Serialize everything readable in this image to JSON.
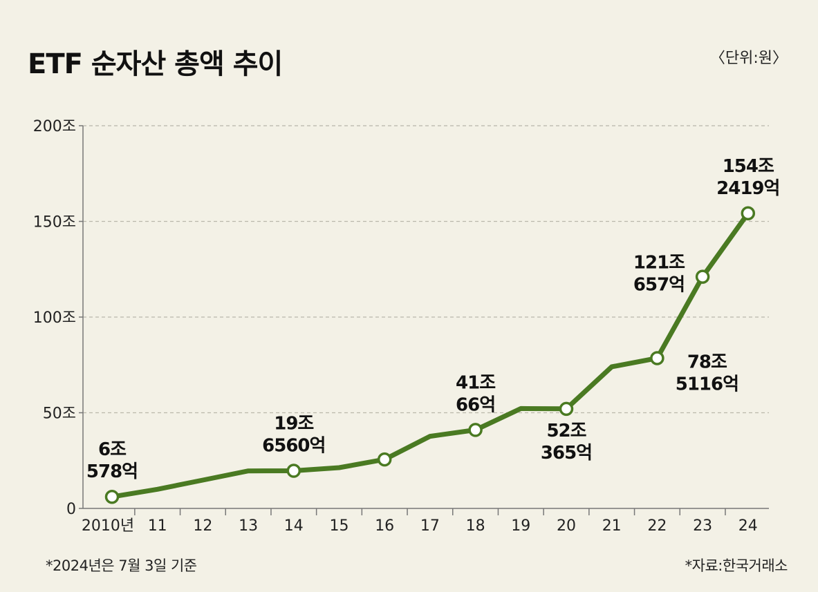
{
  "header": {
    "title": "ETF 순자산 총액 추이",
    "unit": "〈단위:원〉"
  },
  "footer": {
    "note": "*2024년은 7월 3일 기준",
    "source": "*자료:한국거래소"
  },
  "chart_data": {
    "type": "line",
    "x": [
      "2010년",
      "11",
      "12",
      "13",
      "14",
      "15",
      "16",
      "17",
      "18",
      "19",
      "20",
      "21",
      "22",
      "23",
      "24"
    ],
    "values": [
      6.06,
      10.0,
      14.8,
      19.6,
      19.66,
      21.3,
      25.6,
      37.7,
      41.0,
      52.2,
      52.04,
      74.0,
      78.51,
      121.07,
      154.24
    ],
    "ylim": [
      0,
      200
    ],
    "yticks": [
      {
        "value": 0,
        "label": "0"
      },
      {
        "value": 50,
        "label": "50조"
      },
      {
        "value": 100,
        "label": "100조"
      },
      {
        "value": 150,
        "label": "150조"
      },
      {
        "value": 200,
        "label": "200조"
      }
    ],
    "grid": true,
    "line_color": "#4a7a22",
    "marker_fill": "#ffffff",
    "markers": [
      {
        "index": 0,
        "label": [
          "6조",
          "578억"
        ],
        "pos": "above"
      },
      {
        "index": 4,
        "label": [
          "19조",
          "6560억"
        ],
        "pos": "above"
      },
      {
        "index": 6,
        "label": null
      },
      {
        "index": 8,
        "label": [
          "41조",
          "66억"
        ],
        "pos": "above"
      },
      {
        "index": 10,
        "label": [
          "52조",
          "365억"
        ],
        "pos": "below"
      },
      {
        "index": 12,
        "label": [
          "78조",
          "5116억"
        ],
        "pos": "below-right"
      },
      {
        "index": 13,
        "label": [
          "121조",
          "657억"
        ],
        "pos": "left"
      },
      {
        "index": 14,
        "label": [
          "154조",
          "2419억"
        ],
        "pos": "above"
      }
    ]
  }
}
